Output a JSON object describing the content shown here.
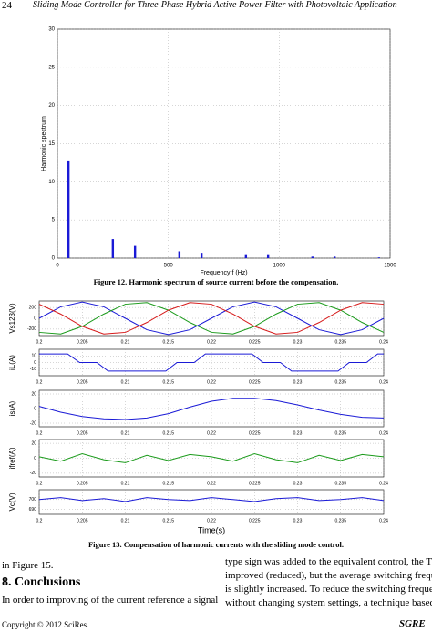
{
  "header": {
    "page": "24",
    "title": "Sliding Mode Controller for Three-Phase Hybrid Active Power Filter with Photovoltaic Application"
  },
  "chart_data": [
    {
      "type": "bar",
      "xlabel": "Frequency f (Hz)",
      "ylabel": "Harmonic spectrum",
      "color": "#1a1ad6",
      "x": [
        50,
        250,
        350,
        550,
        650,
        850,
        950,
        1150,
        1250,
        1450
      ],
      "values": [
        12.8,
        2.5,
        1.6,
        0.9,
        0.7,
        0.4,
        0.4,
        0.2,
        0.2,
        0.1
      ],
      "xlim": [
        0,
        1500
      ],
      "ylim": [
        0,
        30
      ],
      "xticks": [
        0,
        500,
        1000,
        1500
      ],
      "yticks": [
        0,
        5,
        10,
        15,
        20,
        25,
        30
      ],
      "grid": true
    },
    {
      "type": "line",
      "ylabel": "Vs123(V)",
      "x": [
        0.2,
        0.2025,
        0.205,
        0.2075,
        0.21,
        0.2125,
        0.215,
        0.2175,
        0.22,
        0.2225,
        0.225,
        0.2275,
        0.23,
        0.2325,
        0.235,
        0.2375,
        0.24
      ],
      "series": [
        {
          "color": "#1a1ad6",
          "values": [
            0,
            212,
            300,
            212,
            0,
            -212,
            -300,
            -212,
            0,
            212,
            300,
            212,
            0,
            -212,
            -300,
            -212,
            0
          ]
        },
        {
          "color": "#1a9a1a",
          "values": [
            -260,
            -290,
            -150,
            78,
            260,
            290,
            150,
            -78,
            -260,
            -290,
            -150,
            78,
            260,
            290,
            150,
            -78,
            -260
          ]
        },
        {
          "color": "#d61a1a",
          "values": [
            260,
            78,
            -150,
            -290,
            -260,
            -78,
            150,
            290,
            260,
            78,
            -150,
            -290,
            -260,
            -78,
            150,
            290,
            260
          ]
        }
      ],
      "xlim": [
        0.2,
        0.24
      ],
      "ylim": [
        -320,
        320
      ],
      "xticks": [
        0.2,
        0.205,
        0.21,
        0.215,
        0.22,
        0.225,
        0.23,
        0.235,
        0.24
      ],
      "yticks": [
        -200,
        0,
        200
      ],
      "grid": true
    },
    {
      "type": "line",
      "ylabel": "iL(A)",
      "x": [
        0.2,
        0.2033,
        0.2047,
        0.2067,
        0.208,
        0.2147,
        0.216,
        0.218,
        0.2193,
        0.2247,
        0.226,
        0.228,
        0.2293,
        0.2347,
        0.236,
        0.238,
        0.2393,
        0.24
      ],
      "series": [
        {
          "color": "#1a1ad6",
          "values": [
            13,
            13,
            0,
            0,
            -13,
            -13,
            0,
            0,
            13,
            13,
            0,
            0,
            -13,
            -13,
            0,
            0,
            13,
            13
          ]
        }
      ],
      "xlim": [
        0.2,
        0.24
      ],
      "ylim": [
        -20,
        20
      ],
      "xticks": [
        0.2,
        0.205,
        0.21,
        0.215,
        0.22,
        0.225,
        0.23,
        0.235,
        0.24
      ],
      "yticks": [
        -10,
        0,
        10
      ],
      "grid": true
    },
    {
      "type": "line",
      "ylabel": "is(A)",
      "x": [
        0.2,
        0.2025,
        0.205,
        0.2075,
        0.21,
        0.2125,
        0.215,
        0.2175,
        0.22,
        0.2225,
        0.225,
        0.2275,
        0.23,
        0.2325,
        0.235,
        0.2375,
        0.24
      ],
      "series": [
        {
          "color": "#1a1ad6",
          "values": [
            3,
            -5,
            -11,
            -14,
            -15,
            -13,
            -7,
            2,
            10,
            14,
            14,
            11,
            5,
            -2,
            -8,
            -12,
            -13
          ]
        }
      ],
      "xlim": [
        0.2,
        0.24
      ],
      "ylim": [
        -25,
        25
      ],
      "xticks": [
        0.2,
        0.205,
        0.21,
        0.215,
        0.22,
        0.225,
        0.23,
        0.235,
        0.24
      ],
      "yticks": [
        -20,
        0,
        20
      ],
      "grid": true
    },
    {
      "type": "line",
      "ylabel": "ifref(A)",
      "x": [
        0.2,
        0.2025,
        0.205,
        0.2075,
        0.21,
        0.2125,
        0.215,
        0.2175,
        0.22,
        0.2225,
        0.225,
        0.2275,
        0.23,
        0.2325,
        0.235,
        0.2375,
        0.24
      ],
      "series": [
        {
          "color": "#1a9a1a",
          "values": [
            2,
            -4,
            6,
            -2,
            -6,
            4,
            -3,
            5,
            2,
            -4,
            6,
            -2,
            -6,
            4,
            -3,
            5,
            2
          ]
        }
      ],
      "xlim": [
        0.2,
        0.24
      ],
      "ylim": [
        -25,
        25
      ],
      "xticks": [
        0.2,
        0.205,
        0.21,
        0.215,
        0.22,
        0.225,
        0.23,
        0.235,
        0.24
      ],
      "yticks": [
        -20,
        0,
        20
      ],
      "grid": true
    },
    {
      "type": "line",
      "ylabel": "Vc(V)",
      "xlabel": "Time(s)",
      "x": [
        0.2,
        0.2025,
        0.205,
        0.2075,
        0.21,
        0.2125,
        0.215,
        0.2175,
        0.22,
        0.2225,
        0.225,
        0.2275,
        0.23,
        0.2325,
        0.235,
        0.2375,
        0.24
      ],
      "series": [
        {
          "color": "#1a1ad6",
          "values": [
            700,
            702,
            699,
            701,
            698,
            702,
            700,
            699,
            702,
            700,
            698,
            701,
            702,
            699,
            700,
            702,
            699
          ]
        }
      ],
      "xlim": [
        0.2,
        0.24
      ],
      "ylim": [
        685,
        710
      ],
      "xticks": [
        0.2,
        0.205,
        0.21,
        0.215,
        0.22,
        0.225,
        0.23,
        0.235,
        0.24
      ],
      "yticks": [
        690,
        700
      ],
      "grid": true
    }
  ],
  "captions": {
    "figure12": "Figure 12. Harmonic spectrum of source current before the compensation.",
    "figure13": "Figure 13. Compensation of harmonic currents with the sliding mode control."
  },
  "body": {
    "left": [
      "in Figure 15."
    ],
    "heading": "8. Conclusions",
    "left_para": [
      "In order to improving of the current reference a signal"
    ],
    "right": [
      "type sign was added to the equivalent control, the THD is",
      "improved (reduced), but the average switching frequency",
      "is slightly increased. To reduce the switching frequency",
      "without changing system settings, a technique based on"
    ]
  },
  "footer": {
    "copyright": "Copyright © 2012 SciRes.",
    "journal": "SGRE"
  }
}
